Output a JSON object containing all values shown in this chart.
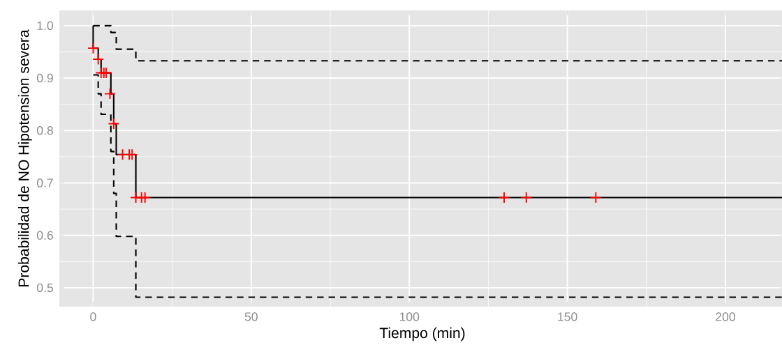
{
  "chart_data": {
    "type": "step",
    "xlabel": "Tiempo (min)",
    "ylabel": "Probabilidad de NO Hipotension severa",
    "xlim": [
      -10.7,
      219
    ],
    "ylim": [
      0.464,
      1.029
    ],
    "xticks": [
      0,
      50,
      100,
      150,
      200
    ],
    "yticks": [
      0.5,
      0.6,
      0.7,
      0.8,
      0.9,
      {
        "value": 1.0,
        "label": "1.0"
      }
    ],
    "grid": true,
    "series": [
      {
        "color": "#000000",
        "line_style": "solid",
        "x": [
          0,
          0,
          1.6,
          2.5,
          5.6,
          6.5,
          7.3,
          13.5,
          219
        ],
        "values": [
          1.0,
          0.957,
          0.936,
          0.91,
          0.87,
          0.813,
          0.754,
          0.672,
          0.672
        ]
      },
      {
        "color": "#000000",
        "line_style": "dashed",
        "x": [
          0,
          5.6,
          7.3,
          13.5,
          219
        ],
        "values": [
          1.0,
          0.987,
          0.955,
          0.933,
          0.933
        ]
      },
      {
        "color": "#000000",
        "line_style": "dashed",
        "x": [
          0,
          1.6,
          2.5,
          5.6,
          6.5,
          7.3,
          13.5,
          219
        ],
        "values": [
          0.906,
          0.87,
          0.831,
          0.76,
          0.68,
          0.598,
          0.482,
          0.482
        ]
      },
      {
        "type": "scatter",
        "color": "#ff0000",
        "marker": "cross",
        "x": [
          0,
          1.6,
          2.5,
          3.4,
          4.1,
          5.3,
          6.5,
          9.3,
          11.4,
          12.3,
          13.5,
          15.3,
          16.4,
          130,
          137,
          159
        ],
        "values": [
          0.957,
          0.936,
          0.91,
          0.91,
          0.91,
          0.87,
          0.813,
          0.754,
          0.754,
          0.754,
          0.672,
          0.672,
          0.672,
          0.672,
          0.672,
          0.672
        ]
      }
    ]
  }
}
